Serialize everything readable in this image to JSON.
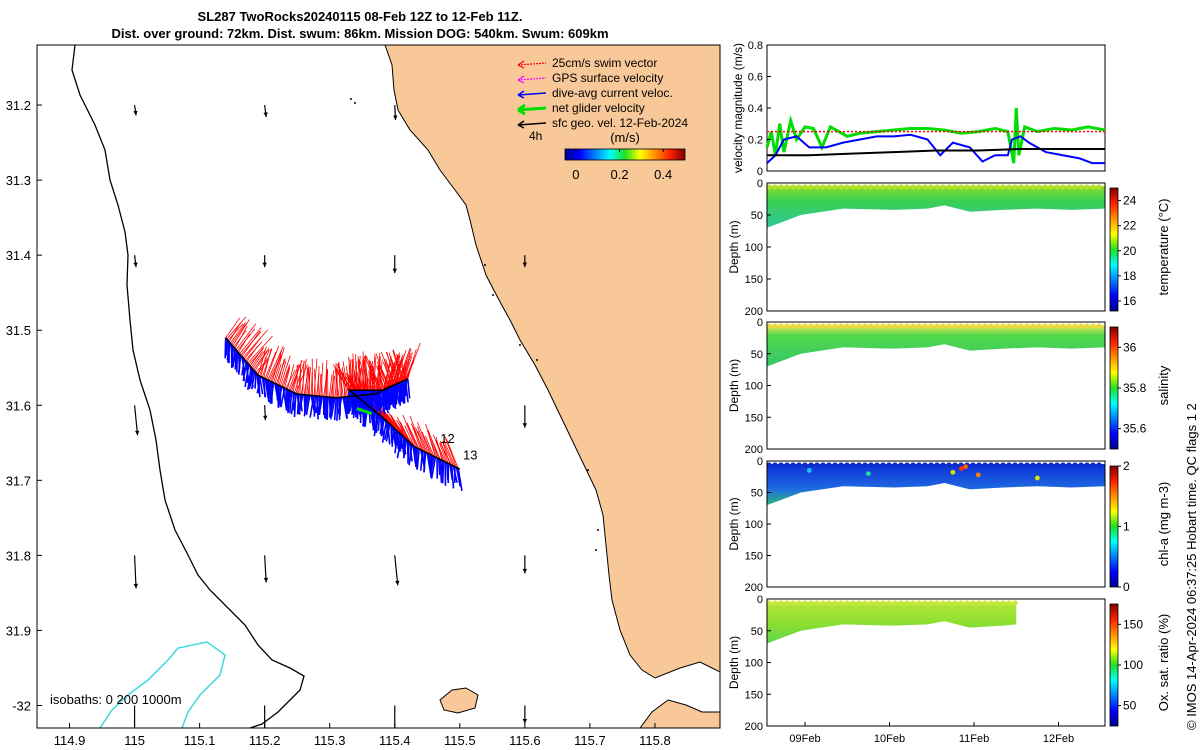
{
  "title": {
    "line1": "SL287 TwoRocks20240115 08-Feb 12Z to 12-Feb 11Z.",
    "line2": "Dist. over ground: 72km. Dist. swum: 86km. Mission DOG: 540km. Swum: 609km"
  },
  "copyright": "© IMOS 14-Apr-2024 06:37:25 Hobart time. QC flags 1  2",
  "colors": {
    "land": "#f9c898",
    "coast": "#000000",
    "isobath": "#40d8e0",
    "swim": "#ff0000",
    "gps": "#ff00ff",
    "dive": "#0000ff",
    "net": "#00dd00",
    "geo": "#000000"
  },
  "chart_data": [
    {
      "type": "map",
      "xlim": [
        114.85,
        115.9
      ],
      "ylim": [
        -32.03,
        -31.12
      ],
      "xticks": [
        114.9,
        115,
        115.1,
        115.2,
        115.3,
        115.4,
        115.5,
        115.6,
        115.7,
        115.8
      ],
      "yticks": [
        31.2,
        31.3,
        31.4,
        31.5,
        31.6,
        31.7,
        31.8,
        31.9,
        -32
      ],
      "legend": {
        "position": "top-right",
        "entries": [
          {
            "label": "25cm/s swim vector",
            "color": "#ff0000"
          },
          {
            "label": "GPS surface velocity",
            "color": "#ff00ff"
          },
          {
            "label": "dive-avg current veloc.",
            "color": "#0000ff"
          },
          {
            "label": "net glider velocity",
            "color": "#00dd00"
          },
          {
            "label": "sfc geo. vel. 12-Feb-2024",
            "color": "#000000"
          }
        ],
        "scale_label": "4h"
      },
      "colorbar": {
        "label": "(m/s)",
        "ticks": [
          0,
          0.2,
          0.4
        ],
        "range": [
          -0.05,
          0.5
        ]
      },
      "isobath_label": "isobaths: 0   200  1000m",
      "track_labels": [
        {
          "label": "12",
          "lon": 115.47,
          "lat": -31.65
        },
        {
          "label": "13",
          "lon": 115.505,
          "lat": -31.672
        }
      ],
      "track": [
        {
          "lon": 115.14,
          "lat": -31.51
        },
        {
          "lon": 115.19,
          "lat": -31.56
        },
        {
          "lon": 115.25,
          "lat": -31.585
        },
        {
          "lon": 115.31,
          "lat": -31.59
        },
        {
          "lon": 115.37,
          "lat": -31.585
        },
        {
          "lon": 115.42,
          "lat": -31.565
        },
        {
          "lon": 115.38,
          "lat": -31.58
        },
        {
          "lon": 115.33,
          "lat": -31.58
        },
        {
          "lon": 115.38,
          "lat": -31.615
        },
        {
          "lon": 115.43,
          "lat": -31.655
        },
        {
          "lon": 115.5,
          "lat": -31.685
        }
      ],
      "geo_vectors": [
        {
          "lon": 115.0,
          "lat": -31.2,
          "u": 0.01,
          "v": -0.07
        },
        {
          "lon": 115.2,
          "lat": -31.2,
          "u": 0.01,
          "v": -0.08
        },
        {
          "lon": 115.4,
          "lat": -31.2,
          "u": 0.005,
          "v": -0.1
        },
        {
          "lon": 115.0,
          "lat": -31.4,
          "u": 0.01,
          "v": -0.08
        },
        {
          "lon": 115.2,
          "lat": -31.4,
          "u": 0.0,
          "v": -0.08
        },
        {
          "lon": 115.4,
          "lat": -31.4,
          "u": 0.0,
          "v": -0.12
        },
        {
          "lon": 115.6,
          "lat": -31.4,
          "u": 0.0,
          "v": -0.08
        },
        {
          "lon": 115.0,
          "lat": -31.6,
          "u": 0.02,
          "v": -0.2
        },
        {
          "lon": 115.2,
          "lat": -31.6,
          "u": 0.005,
          "v": -0.1
        },
        {
          "lon": 115.6,
          "lat": -31.6,
          "u": 0.0,
          "v": -0.15
        },
        {
          "lon": 115.0,
          "lat": -31.8,
          "u": 0.01,
          "v": -0.22
        },
        {
          "lon": 115.2,
          "lat": -31.8,
          "u": 0.01,
          "v": -0.18
        },
        {
          "lon": 115.4,
          "lat": -31.8,
          "u": 0.02,
          "v": -0.2
        },
        {
          "lon": 115.6,
          "lat": -31.8,
          "u": 0.0,
          "v": -0.12
        },
        {
          "lon": 115.0,
          "lat": -32.0,
          "u": 0.0,
          "v": -0.25
        },
        {
          "lon": 115.2,
          "lat": -32.0,
          "u": 0.0,
          "v": -0.2
        },
        {
          "lon": 115.4,
          "lat": -32.0,
          "u": 0.0,
          "v": -0.2
        },
        {
          "lon": 115.6,
          "lat": -32.0,
          "u": 0.0,
          "v": -0.12
        }
      ]
    },
    {
      "type": "line",
      "ylabel": "velocity magnitude (m/s)",
      "ylim": [
        0,
        0.8
      ],
      "yticks": [
        0,
        0.2,
        0.4,
        0.6,
        0.8
      ],
      "xlim": [
        0.0,
        4.0
      ],
      "series": [
        {
          "color": "#00dd00",
          "values": [
            [
              0.0,
              0.15
            ],
            [
              0.05,
              0.25
            ],
            [
              0.1,
              0.1
            ],
            [
              0.15,
              0.3
            ],
            [
              0.2,
              0.12
            ],
            [
              0.28,
              0.32
            ],
            [
              0.35,
              0.2
            ],
            [
              0.45,
              0.28
            ],
            [
              0.55,
              0.27
            ],
            [
              0.65,
              0.15
            ],
            [
              0.75,
              0.28
            ],
            [
              0.85,
              0.25
            ],
            [
              0.95,
              0.22
            ],
            [
              1.1,
              0.24
            ],
            [
              1.3,
              0.25
            ],
            [
              1.5,
              0.26
            ],
            [
              1.7,
              0.27
            ],
            [
              1.9,
              0.27
            ],
            [
              2.1,
              0.26
            ],
            [
              2.3,
              0.24
            ],
            [
              2.5,
              0.25
            ],
            [
              2.7,
              0.27
            ],
            [
              2.85,
              0.25
            ],
            [
              2.92,
              0.05
            ],
            [
              2.95,
              0.4
            ],
            [
              2.98,
              0.1
            ],
            [
              3.05,
              0.28
            ],
            [
              3.2,
              0.25
            ],
            [
              3.4,
              0.27
            ],
            [
              3.6,
              0.26
            ],
            [
              3.8,
              0.28
            ],
            [
              4.0,
              0.26
            ]
          ]
        },
        {
          "color": "#0000ff",
          "values": [
            [
              0.0,
              0.05
            ],
            [
              0.1,
              0.1
            ],
            [
              0.2,
              0.2
            ],
            [
              0.35,
              0.22
            ],
            [
              0.5,
              0.15
            ],
            [
              0.7,
              0.15
            ],
            [
              0.9,
              0.18
            ],
            [
              1.1,
              0.2
            ],
            [
              1.3,
              0.22
            ],
            [
              1.5,
              0.22
            ],
            [
              1.7,
              0.23
            ],
            [
              1.9,
              0.2
            ],
            [
              2.05,
              0.1
            ],
            [
              2.2,
              0.18
            ],
            [
              2.4,
              0.15
            ],
            [
              2.55,
              0.06
            ],
            [
              2.7,
              0.1
            ],
            [
              2.85,
              0.1
            ],
            [
              2.9,
              0.2
            ],
            [
              3.0,
              0.22
            ],
            [
              3.1,
              0.18
            ],
            [
              3.3,
              0.12
            ],
            [
              3.5,
              0.1
            ],
            [
              3.7,
              0.08
            ],
            [
              3.85,
              0.05
            ],
            [
              4.0,
              0.05
            ]
          ]
        },
        {
          "color": "#000000",
          "values": [
            [
              0.0,
              0.1
            ],
            [
              0.5,
              0.1
            ],
            [
              1.0,
              0.11
            ],
            [
              1.5,
              0.12
            ],
            [
              2.0,
              0.13
            ],
            [
              2.5,
              0.13
            ],
            [
              3.0,
              0.14
            ],
            [
              3.5,
              0.14
            ],
            [
              4.0,
              0.14
            ]
          ]
        },
        {
          "color": "#ff0000",
          "values": [
            [
              0.0,
              0.25
            ],
            [
              4.0,
              0.25
            ]
          ]
        }
      ]
    },
    {
      "type": "heatmap",
      "colorbar_label": "temperature (°C)",
      "ylabel": "Depth (m)",
      "ylim": [
        0,
        200
      ],
      "yticks": [
        0,
        50,
        100,
        150,
        200
      ],
      "cbar_range": [
        15.2,
        25
      ],
      "cbar_ticks": [
        16,
        18,
        20,
        22,
        24
      ],
      "xlim": [
        0.0,
        4.0
      ],
      "bottom_profile": [
        [
          0.0,
          70
        ],
        [
          0.1,
          65
        ],
        [
          0.4,
          50
        ],
        [
          0.9,
          40
        ],
        [
          1.5,
          42
        ],
        [
          1.9,
          40
        ],
        [
          2.1,
          35
        ],
        [
          2.4,
          45
        ],
        [
          2.8,
          42
        ],
        [
          3.2,
          40
        ],
        [
          3.6,
          42
        ],
        [
          4.0,
          40
        ]
      ]
    },
    {
      "type": "heatmap",
      "colorbar_label": "salinity",
      "ylabel": "Depth (m)",
      "ylim": [
        0,
        200
      ],
      "yticks": [
        0,
        50,
        100,
        150,
        200
      ],
      "cbar_range": [
        35.5,
        36.1
      ],
      "cbar_ticks": [
        35.6,
        35.8,
        36
      ],
      "xlim": [
        0.0,
        4.0
      ],
      "bottom_profile": [
        [
          0.0,
          70
        ],
        [
          0.1,
          65
        ],
        [
          0.4,
          50
        ],
        [
          0.9,
          40
        ],
        [
          1.5,
          42
        ],
        [
          1.9,
          40
        ],
        [
          2.1,
          35
        ],
        [
          2.4,
          45
        ],
        [
          2.8,
          42
        ],
        [
          3.2,
          40
        ],
        [
          3.6,
          42
        ],
        [
          4.0,
          40
        ]
      ]
    },
    {
      "type": "heatmap",
      "colorbar_label": "chl-a (mg m-3)",
      "ylabel": "Depth (m)",
      "ylim": [
        0,
        200
      ],
      "yticks": [
        0,
        50,
        100,
        150,
        200
      ],
      "cbar_range": [
        0,
        2
      ],
      "cbar_ticks": [
        0,
        1,
        2
      ],
      "xlim": [
        0.0,
        4.0
      ],
      "bottom_profile": [
        [
          0.0,
          70
        ],
        [
          0.1,
          65
        ],
        [
          0.4,
          50
        ],
        [
          0.9,
          40
        ],
        [
          1.5,
          42
        ],
        [
          1.9,
          40
        ],
        [
          2.1,
          35
        ],
        [
          2.4,
          45
        ],
        [
          2.8,
          42
        ],
        [
          3.2,
          40
        ],
        [
          3.6,
          42
        ],
        [
          4.0,
          40
        ]
      ]
    },
    {
      "type": "heatmap",
      "colorbar_label": "Ox. sat. ratio (%)",
      "ylabel": "Depth (m)",
      "ylim": [
        0,
        200
      ],
      "yticks": [
        0,
        50,
        100,
        150,
        200
      ],
      "cbar_range": [
        25,
        175
      ],
      "cbar_ticks": [
        50,
        100,
        150
      ],
      "xlim": [
        0.0,
        4.0
      ],
      "data_end": 2.95,
      "bottom_profile": [
        [
          0.0,
          70
        ],
        [
          0.1,
          65
        ],
        [
          0.4,
          50
        ],
        [
          0.9,
          40
        ],
        [
          1.5,
          42
        ],
        [
          1.9,
          40
        ],
        [
          2.1,
          35
        ],
        [
          2.4,
          45
        ],
        [
          2.8,
          42
        ],
        [
          2.95,
          40
        ]
      ]
    }
  ],
  "time_axis": {
    "ticks": [
      {
        "label": "09Feb",
        "x": 0.45
      },
      {
        "label": "10Feb",
        "x": 1.45
      },
      {
        "label": "11Feb",
        "x": 2.45
      },
      {
        "label": "12Feb",
        "x": 3.45
      }
    ]
  }
}
